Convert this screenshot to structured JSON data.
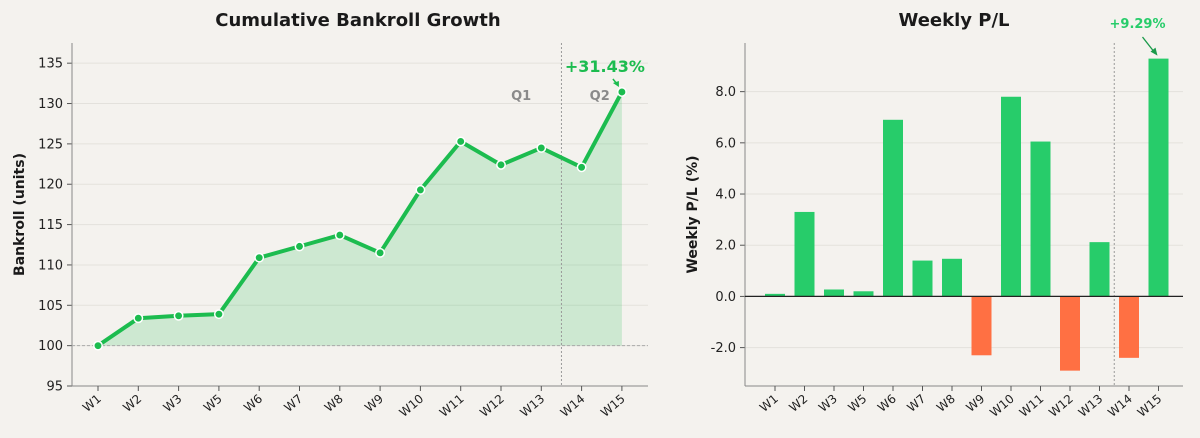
{
  "chart_data": [
    {
      "type": "line",
      "title": "Cumulative Bankroll Growth",
      "xlabel": "",
      "ylabel": "Bankroll (units)",
      "categories": [
        "W1",
        "W2",
        "W3",
        "W5",
        "W6",
        "W7",
        "W8",
        "W9",
        "W10",
        "W11",
        "W12",
        "W13",
        "W14",
        "W15"
      ],
      "values": [
        100.0,
        103.4,
        103.7,
        103.9,
        110.9,
        112.3,
        113.7,
        111.5,
        119.3,
        125.3,
        122.4,
        124.5,
        122.1,
        131.43
      ],
      "ylim": [
        95,
        137.5
      ],
      "yticks": [
        95,
        100,
        105,
        110,
        115,
        120,
        125,
        130,
        135
      ],
      "baseline": 100,
      "area_fill": true,
      "divider_after_index": 11.5,
      "regions": [
        {
          "label": "Q1",
          "at_index": 10.5
        },
        {
          "label": "Q2",
          "at_index": 12.45
        }
      ],
      "annotation": {
        "text": "+31.43%",
        "index": 13
      },
      "color": "#1cbc4f"
    },
    {
      "type": "bar",
      "title": "Weekly P/L",
      "xlabel": "",
      "ylabel": "Weekly P/L (%)",
      "categories": [
        "W1",
        "W2",
        "W3",
        "W5",
        "W6",
        "W7",
        "W8",
        "W9",
        "W10",
        "W11",
        "W12",
        "W13",
        "W14",
        "W15"
      ],
      "values": [
        0.1,
        3.3,
        0.27,
        0.2,
        6.9,
        1.4,
        1.47,
        -2.3,
        7.8,
        6.05,
        -2.9,
        2.12,
        -2.4,
        9.29
      ],
      "ylim": [
        -3.5,
        9.9
      ],
      "yticks": [
        -2.0,
        0.0,
        2.0,
        4.0,
        6.0,
        8.0
      ],
      "divider_after_index": 11.5,
      "annotation": {
        "text": "+9.29%",
        "index": 13
      },
      "positive_color": "#27cc6a",
      "negative_color": "#ff7043"
    }
  ]
}
